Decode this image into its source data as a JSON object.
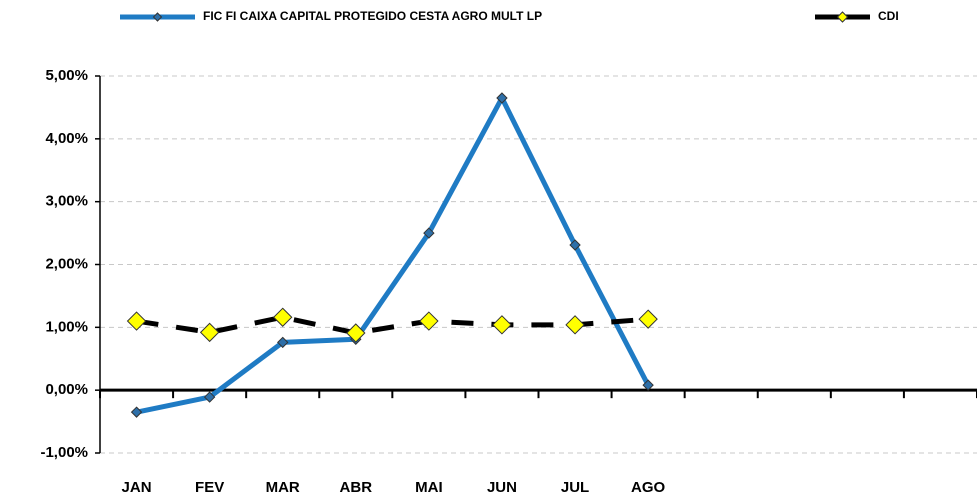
{
  "chart_data": {
    "type": "line",
    "categories": [
      "JAN",
      "FEV",
      "MAR",
      "ABR",
      "MAI",
      "JUN",
      "JUL",
      "AGO",
      null,
      null,
      null,
      null
    ],
    "series": [
      {
        "name": "FIC FI CAIXA CAPITAL PROTEGIDO CESTA AGRO MULT LP",
        "color": "#1f7bc4",
        "marker_color": "#2e6fa8",
        "values": [
          -0.35,
          -0.11,
          0.76,
          0.81,
          2.5,
          4.65,
          2.31,
          0.08,
          null,
          null,
          null,
          null
        ]
      },
      {
        "name": "CDI",
        "color": "#000000",
        "marker_color": "#ffff00",
        "values": [
          1.1,
          0.92,
          1.16,
          0.91,
          1.1,
          1.04,
          1.04,
          1.13,
          null,
          null,
          null,
          null
        ]
      }
    ],
    "ylim": [
      -1,
      5
    ],
    "yticks": [
      {
        "value": -1,
        "label": "-1,00%"
      },
      {
        "value": 0,
        "label": "0,00%"
      },
      {
        "value": 1,
        "label": "1,00%"
      },
      {
        "value": 2,
        "label": "2,00%"
      },
      {
        "value": 3,
        "label": "3,00%"
      },
      {
        "value": 4,
        "label": "4,00%"
      },
      {
        "value": 5,
        "label": "5,00%"
      }
    ],
    "grid": true
  }
}
